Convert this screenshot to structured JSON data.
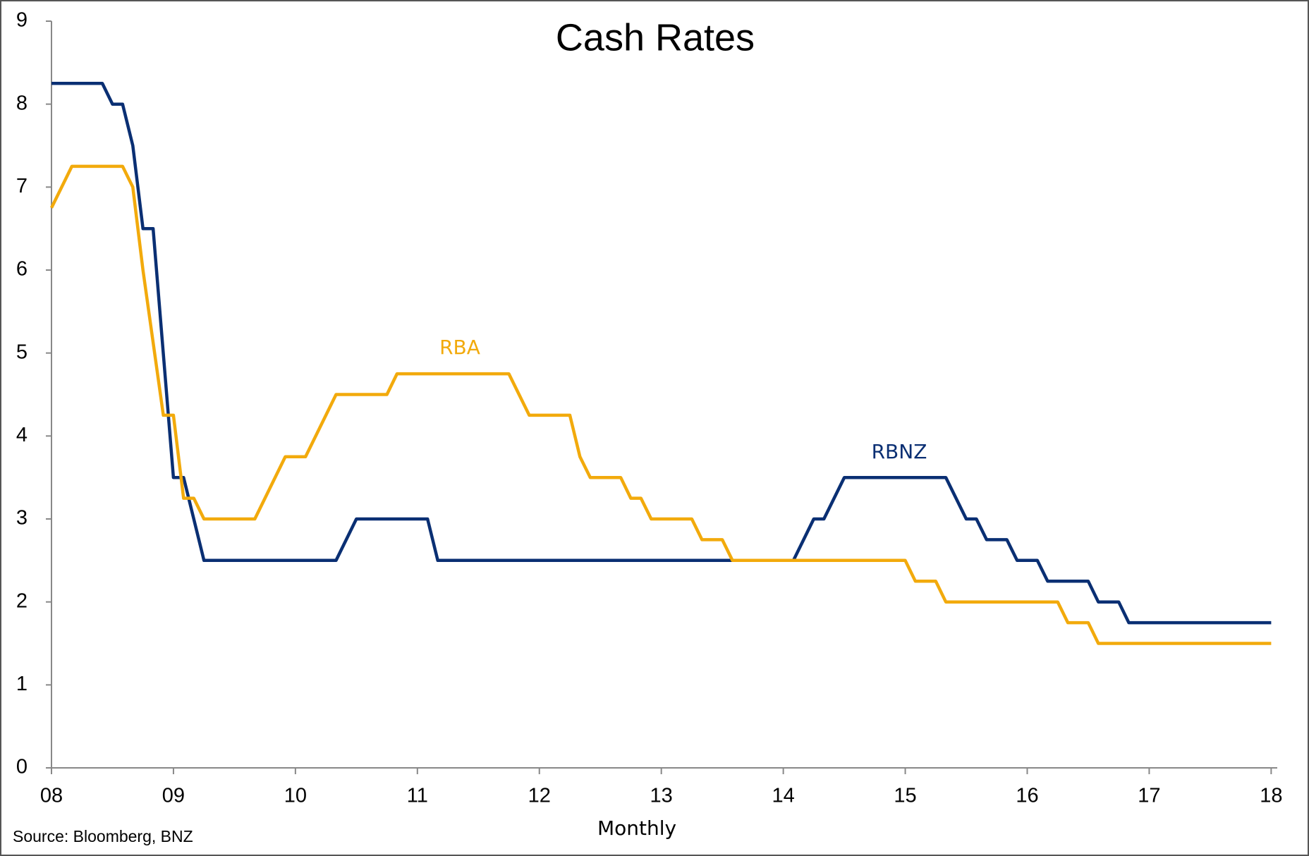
{
  "chart_data": {
    "type": "line",
    "title": "Cash Rates",
    "x_label": "Monthly",
    "source": "Source: Bloomberg, BNZ",
    "series": [
      {
        "name": "RBNZ",
        "color": "#0a2f73",
        "x": [
          2008,
          2008.417,
          2008.5,
          2008.583,
          2008.667,
          2008.75,
          2008.833,
          2009,
          2009.083,
          2009.25,
          2010.333,
          2010.5,
          2011.083,
          2011.167,
          2014.083,
          2014.25,
          2014.333,
          2014.5,
          2015.333,
          2015.5,
          2015.583,
          2015.667,
          2015.833,
          2015.917,
          2016.083,
          2016.167,
          2016.5,
          2016.583,
          2016.75,
          2016.833,
          2018
        ],
        "values": [
          8.25,
          8.25,
          8,
          8,
          7.5,
          6.5,
          6.5,
          3.5,
          3.5,
          2.5,
          2.5,
          3,
          3,
          2.5,
          2.5,
          3,
          3,
          3.5,
          3.5,
          3,
          3,
          2.75,
          2.75,
          2.5,
          2.5,
          2.25,
          2.25,
          2,
          2,
          1.75,
          1.75
        ]
      },
      {
        "name": "RBA",
        "color": "#f2aa0c",
        "x": [
          2008,
          2008.167,
          2008.583,
          2008.667,
          2008.75,
          2008.917,
          2009,
          2009.083,
          2009.167,
          2009.25,
          2009.667,
          2009.917,
          2010.083,
          2010.333,
          2010.75,
          2010.833,
          2011.75,
          2011.917,
          2012.25,
          2012.333,
          2012.417,
          2012.667,
          2012.75,
          2012.833,
          2012.917,
          2013.25,
          2013.333,
          2013.5,
          2013.583,
          2015,
          2015.083,
          2015.25,
          2015.333,
          2016.25,
          2016.333,
          2016.5,
          2016.583,
          2018
        ],
        "values": [
          6.75,
          7.25,
          7.25,
          7,
          6,
          4.25,
          4.25,
          3.25,
          3.25,
          3,
          3,
          3.75,
          3.75,
          4.5,
          4.5,
          4.75,
          4.75,
          4.25,
          4.25,
          3.75,
          3.5,
          3.5,
          3.25,
          3.25,
          3,
          3,
          2.75,
          2.75,
          2.5,
          2.5,
          2.25,
          2.25,
          2,
          2,
          1.75,
          1.75,
          1.5,
          1.5
        ]
      }
    ],
    "xlim": [
      2008,
      2018.05
    ],
    "xticks": [
      {
        "value": 2008,
        "label": "08"
      },
      {
        "value": 2009,
        "label": "09"
      },
      {
        "value": 2010,
        "label": "10"
      },
      {
        "value": 2011,
        "label": "11"
      },
      {
        "value": 2012,
        "label": "12"
      },
      {
        "value": 2013,
        "label": "13"
      },
      {
        "value": 2014,
        "label": "14"
      },
      {
        "value": 2015,
        "label": "15"
      },
      {
        "value": 2016,
        "label": "16"
      },
      {
        "value": 2017,
        "label": "17"
      },
      {
        "value": 2018,
        "label": "18"
      }
    ],
    "ylim": [
      0,
      9
    ],
    "yticks": [
      0,
      1,
      2,
      3,
      4,
      5,
      6,
      7,
      8,
      9
    ],
    "grid": false
  }
}
